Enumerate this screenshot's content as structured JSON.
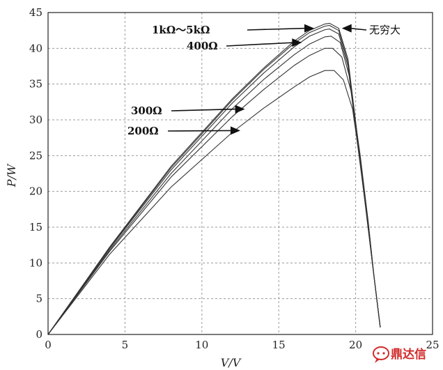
{
  "chart_data": {
    "type": "line",
    "xlabel": "V/V",
    "ylabel": "P/W",
    "xlim": [
      0,
      25
    ],
    "ylim": [
      0,
      45
    ],
    "xticks": [
      0,
      5,
      10,
      15,
      20,
      25
    ],
    "yticks": [
      0,
      5,
      10,
      15,
      20,
      25,
      30,
      35,
      40,
      45
    ],
    "grid": true,
    "series": [
      {
        "name": "200Ω",
        "x": [
          0,
          4,
          8,
          12,
          14,
          16,
          17,
          18,
          18.6,
          19.2,
          19.8,
          20.3,
          20.8,
          21.2,
          21.6
        ],
        "y": [
          0,
          11.2,
          20.6,
          28.3,
          31.6,
          34.6,
          36,
          36.9,
          36.9,
          35.6,
          31.5,
          24,
          15,
          8,
          1
        ]
      },
      {
        "name": "300Ω",
        "x": [
          0,
          4,
          8,
          12,
          14,
          16,
          17,
          18,
          18.5,
          19.1,
          19.7,
          20.3,
          20.8,
          21.2,
          21.6
        ],
        "y": [
          0,
          11.6,
          22,
          30.5,
          34.2,
          37.6,
          39,
          40,
          40,
          38.8,
          34,
          25,
          16,
          8,
          1
        ]
      },
      {
        "name": "400Ω",
        "x": [
          0,
          4,
          8,
          12,
          14,
          16,
          17,
          18,
          18.4,
          19,
          19.6,
          20.2,
          20.8,
          21.2,
          21.6
        ],
        "y": [
          0,
          11.8,
          22.5,
          31.6,
          35.6,
          39.1,
          40.6,
          41.6,
          41.7,
          40.8,
          36,
          26,
          16,
          8,
          1
        ]
      },
      {
        "name": "1kΩ",
        "x": [
          0,
          4,
          8,
          12,
          14,
          16,
          17,
          18,
          18.3,
          18.9,
          19.5,
          20.1,
          20.7,
          21.2,
          21.6
        ],
        "y": [
          0,
          12,
          23,
          32.4,
          36.5,
          40.2,
          41.7,
          42.6,
          42.7,
          42,
          37.5,
          27,
          17,
          8,
          1
        ]
      },
      {
        "name": "5kΩ",
        "x": [
          0,
          4,
          8,
          12,
          14,
          16,
          17,
          18,
          18.3,
          18.9,
          19.5,
          20.1,
          20.7,
          21.2,
          21.6
        ],
        "y": [
          0,
          12.1,
          23.3,
          32.8,
          37,
          40.7,
          42.2,
          43.1,
          43.2,
          42.5,
          38,
          27.5,
          17,
          8,
          1
        ]
      },
      {
        "name": "无穷大",
        "x": [
          0,
          4,
          8,
          12,
          14,
          16,
          17,
          18,
          18.3,
          18.9,
          19.5,
          20.1,
          20.7,
          21.2,
          21.6
        ],
        "y": [
          0,
          12.2,
          23.5,
          33,
          37.2,
          41,
          42.5,
          43.4,
          43.5,
          42.8,
          38.5,
          28,
          17,
          8,
          1
        ]
      }
    ],
    "annotations": [
      {
        "label": "1kΩ～5kΩ",
        "points_to": [
          17.3,
          42.8
        ],
        "style": "bold"
      },
      {
        "label": "400Ω",
        "points_to": [
          16.5,
          40.8
        ],
        "style": "bold"
      },
      {
        "label": "300Ω",
        "points_to": [
          12.8,
          31.5
        ],
        "style": "bold"
      },
      {
        "label": "200Ω",
        "points_to": [
          12.5,
          28.5
        ],
        "style": "bold"
      },
      {
        "label": "无穷大",
        "points_to": [
          19.1,
          42.8
        ],
        "style": "cn"
      }
    ]
  },
  "watermark": {
    "text": "鼎达信",
    "icon": "chat-bubble-icon",
    "color": "#d12a2a"
  }
}
